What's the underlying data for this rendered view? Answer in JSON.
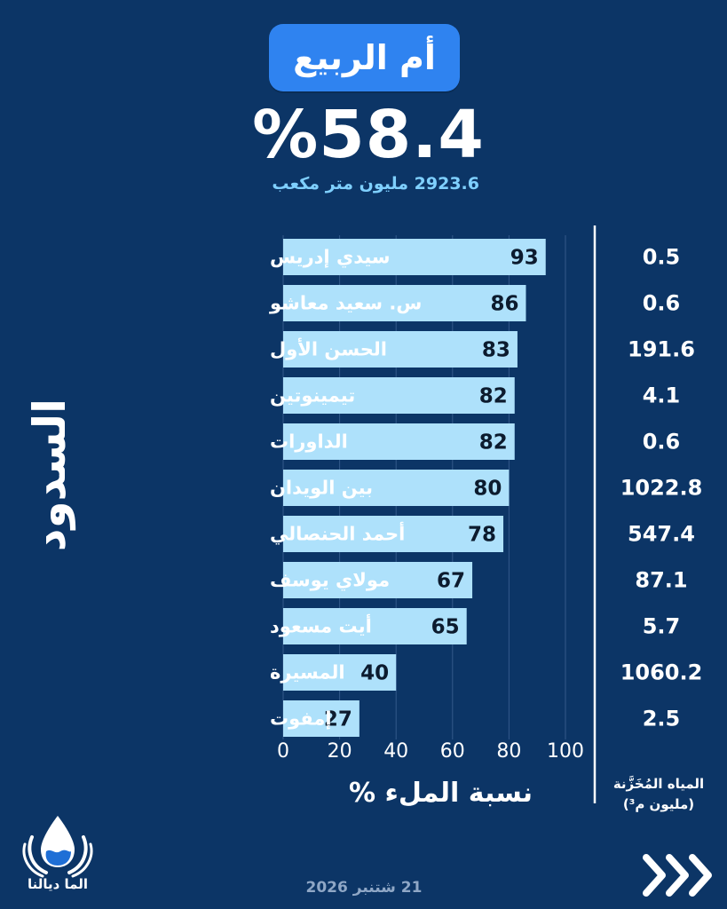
{
  "header": {
    "title": "أم الربيع",
    "fill_percent": "%58.4",
    "volume_text": "2923.6 مليون متر مكعب"
  },
  "chart_data": {
    "type": "bar",
    "orientation": "horizontal",
    "categories": [
      "سيدي إدريس",
      "س. سعيد معاشو",
      "الحسن الأول",
      "تيمينوتين",
      "الداورات",
      "بين الويدان",
      "أحمد الحنصالي",
      "مولاي يوسف",
      "أيت مسعود",
      "المسيرة",
      "إمفوت"
    ],
    "values": [
      93,
      86,
      83,
      82,
      82,
      80,
      78,
      67,
      65,
      40,
      27
    ],
    "stored_water": [
      "0.5",
      "0.6",
      "191.6",
      "4.1",
      "0.6",
      "1022.8",
      "547.4",
      "87.1",
      "5.7",
      "1060.2",
      "2.5"
    ],
    "ylabel": "السدود",
    "xlabel": "نسبة الملء %",
    "xlim": [
      0,
      100
    ],
    "xticks": [
      "0",
      "20",
      "40",
      "60",
      "80",
      "100"
    ],
    "stored_title_line1": "المياه المُخَزَّنة",
    "stored_title_line2": "(مليون م³)",
    "bar_color": "#aee1fb",
    "grid": true
  },
  "footer": {
    "date": "21 شتنبر 2026",
    "logo_text": "الما ديالنا",
    "logo_icon": "water-drop-hands-icon",
    "next_icon": "triple-chevron-right-icon"
  }
}
